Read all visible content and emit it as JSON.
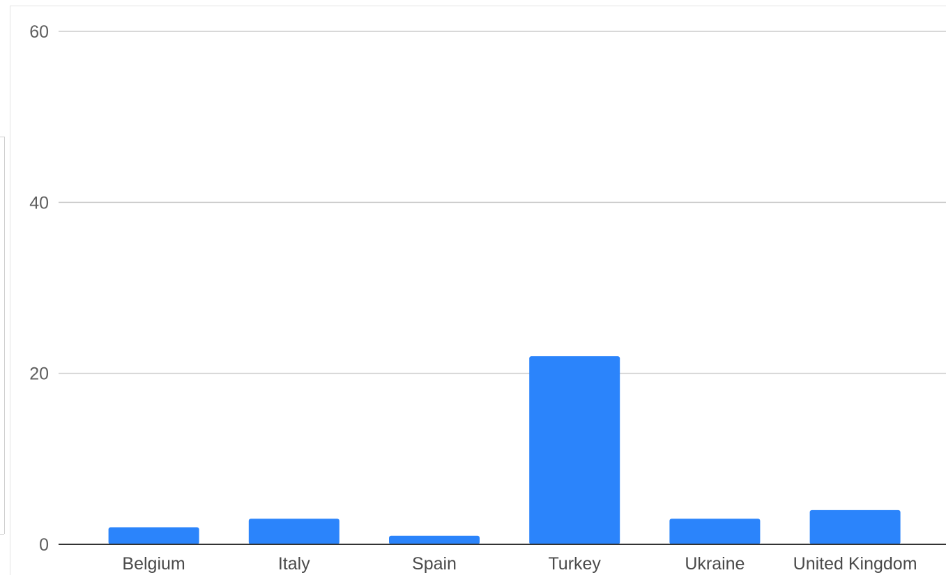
{
  "chart_data": {
    "type": "bar",
    "title": "",
    "xlabel": "",
    "ylabel": "",
    "categories": [
      "Belgium",
      "Italy",
      "Spain",
      "Turkey",
      "Ukraine",
      "United Kingdom"
    ],
    "values": [
      2,
      3,
      1,
      22,
      3,
      4
    ],
    "ylim": [
      0,
      60
    ],
    "yticks": [
      0,
      20,
      40,
      60
    ],
    "ytick_labels": [
      "0",
      "20",
      "40",
      "60"
    ],
    "grid": true,
    "legend": "none",
    "bar_color": "#2b84fb",
    "gridline_color": "#cccccc",
    "baseline_color": "#333333"
  }
}
